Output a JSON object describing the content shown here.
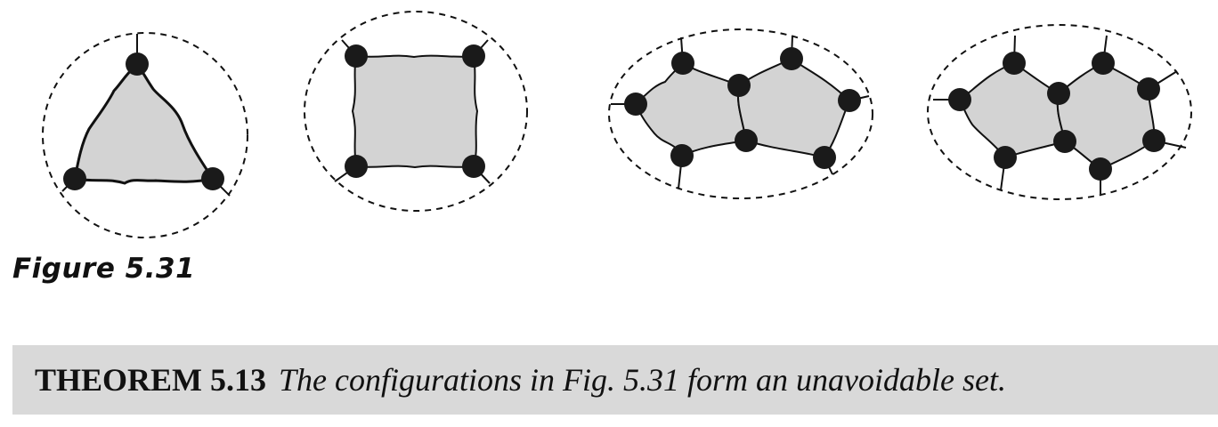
{
  "figure": {
    "caption": "Figure 5.31",
    "configurations": [
      {
        "label": "triangle",
        "vertices": 3
      },
      {
        "label": "square",
        "vertices": 4
      },
      {
        "label": "two adjacent pentagons",
        "vertices": 8
      },
      {
        "label": "pentagon and hexagon",
        "vertices": 9
      }
    ]
  },
  "theorem": {
    "label": "THEOREM 5.13",
    "statement": "The configurations in Fig. 5.31 form an unavoidable set."
  },
  "colors": {
    "region_fill": "#d3d3d3",
    "vertex": "#1a1a1a",
    "theorem_background": "#d9d9d9"
  }
}
